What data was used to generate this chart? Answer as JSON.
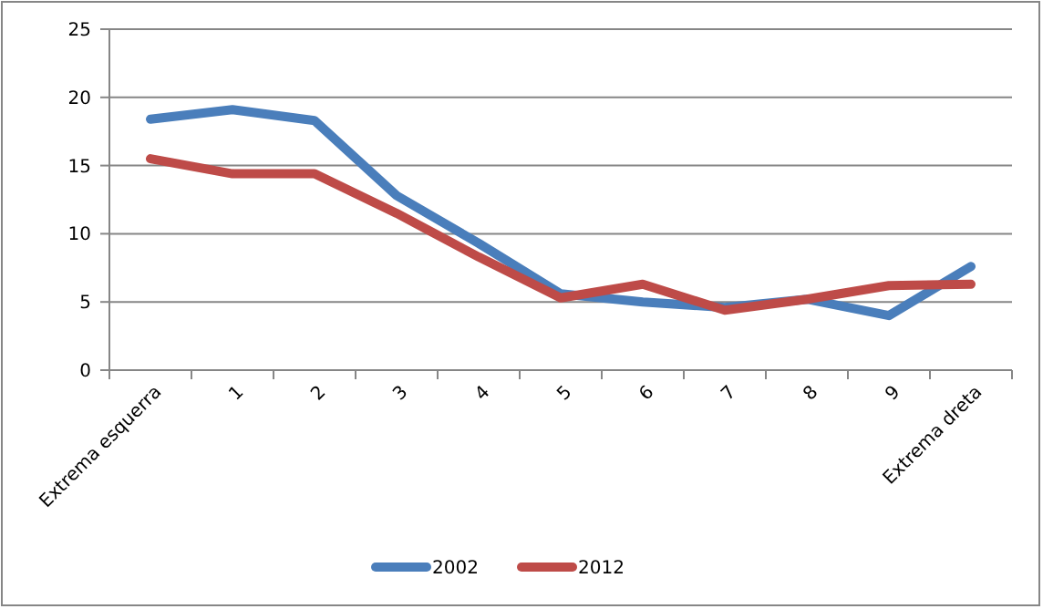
{
  "chart_data": {
    "type": "line",
    "categories": [
      "Extrema esquerra",
      "1",
      "2",
      "3",
      "4",
      "5",
      "6",
      "7",
      "8",
      "9",
      "Extrema dreta"
    ],
    "series": [
      {
        "name": "2002",
        "color": "#4a7ebb",
        "values": [
          18.4,
          19.1,
          18.3,
          12.8,
          9.3,
          5.6,
          5.0,
          4.6,
          5.2,
          4.0,
          7.6
        ]
      },
      {
        "name": "2012",
        "color": "#be4b48",
        "values": [
          15.5,
          14.4,
          14.4,
          11.5,
          8.3,
          5.3,
          6.3,
          4.4,
          5.2,
          6.2,
          6.3
        ]
      }
    ],
    "ylim": [
      0,
      25
    ],
    "yticks": [
      0,
      5,
      10,
      15,
      20,
      25
    ],
    "grid": "y",
    "legend": "bottom",
    "marker": "none",
    "line_style": "solid"
  }
}
